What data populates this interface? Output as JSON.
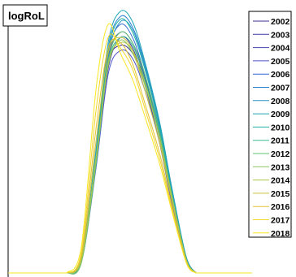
{
  "chart_data": {
    "type": "line",
    "title": "logRoL",
    "xlabel": "",
    "ylabel": "",
    "grid": false,
    "legend_position": "right",
    "xlim": [
      0,
      10
    ],
    "ylim": [
      0,
      1
    ],
    "series": [
      {
        "name": "2002",
        "color": "#3a2f8f",
        "x": [
          2.4,
          3.0,
          3.6,
          4.1,
          4.6,
          5.1,
          5.6,
          6.2,
          6.7,
          7.3,
          7.7
        ],
        "y": [
          0.0,
          0.05,
          0.45,
          0.8,
          0.87,
          0.84,
          0.74,
          0.52,
          0.3,
          0.06,
          0.0
        ]
      },
      {
        "name": "2003",
        "color": "#3f3ca3",
        "x": [
          2.4,
          3.0,
          3.6,
          4.1,
          4.6,
          5.1,
          5.6,
          6.2,
          6.7,
          7.3,
          7.7
        ],
        "y": [
          0.0,
          0.04,
          0.42,
          0.78,
          0.9,
          0.86,
          0.72,
          0.5,
          0.28,
          0.05,
          0.0
        ]
      },
      {
        "name": "2004",
        "color": "#4346b5",
        "x": [
          2.4,
          3.0,
          3.6,
          4.1,
          4.6,
          5.1,
          5.6,
          6.2,
          6.7,
          7.3,
          7.7
        ],
        "y": [
          0.0,
          0.05,
          0.44,
          0.82,
          0.92,
          0.88,
          0.75,
          0.54,
          0.31,
          0.06,
          0.0
        ]
      },
      {
        "name": "2005",
        "color": "#4a51c8",
        "x": [
          2.4,
          3.0,
          3.6,
          4.1,
          4.6,
          5.1,
          5.6,
          6.2,
          6.7,
          7.3,
          7.7
        ],
        "y": [
          0.0,
          0.04,
          0.4,
          0.76,
          0.85,
          0.82,
          0.7,
          0.5,
          0.27,
          0.05,
          0.0
        ]
      },
      {
        "name": "2006",
        "color": "#2f68d4",
        "x": [
          2.4,
          3.0,
          3.6,
          4.1,
          4.6,
          5.1,
          5.6,
          6.2,
          6.7,
          7.3,
          7.7
        ],
        "y": [
          0.0,
          0.05,
          0.46,
          0.84,
          0.95,
          0.9,
          0.76,
          0.55,
          0.32,
          0.06,
          0.0
        ]
      },
      {
        "name": "2007",
        "color": "#2a80d2",
        "x": [
          2.4,
          3.0,
          3.6,
          4.1,
          4.6,
          5.1,
          5.6,
          6.2,
          6.7,
          7.3,
          7.7
        ],
        "y": [
          0.0,
          0.05,
          0.45,
          0.86,
          0.98,
          0.94,
          0.8,
          0.58,
          0.33,
          0.06,
          0.0
        ]
      },
      {
        "name": "2008",
        "color": "#2993c6",
        "x": [
          2.4,
          3.0,
          3.6,
          4.1,
          4.6,
          5.1,
          5.6,
          6.2,
          6.7,
          7.3,
          7.7
        ],
        "y": [
          0.0,
          0.04,
          0.43,
          0.83,
          0.96,
          0.93,
          0.79,
          0.57,
          0.32,
          0.05,
          0.0
        ]
      },
      {
        "name": "2009",
        "color": "#1fa5b8",
        "x": [
          2.4,
          3.0,
          3.6,
          4.1,
          4.6,
          5.1,
          5.6,
          6.2,
          6.7,
          7.3,
          7.7
        ],
        "y": [
          0.0,
          0.05,
          0.47,
          0.88,
          1.0,
          0.96,
          0.81,
          0.58,
          0.33,
          0.06,
          0.0
        ]
      },
      {
        "name": "2010",
        "color": "#22b3a4",
        "x": [
          2.4,
          3.0,
          3.6,
          4.1,
          4.6,
          5.1,
          5.6,
          6.2,
          6.7,
          7.3,
          7.7
        ],
        "y": [
          0.0,
          0.05,
          0.44,
          0.85,
          0.97,
          0.92,
          0.78,
          0.56,
          0.31,
          0.06,
          0.0
        ]
      },
      {
        "name": "2011",
        "color": "#3bbc8e",
        "x": [
          2.4,
          3.0,
          3.6,
          4.1,
          4.6,
          5.1,
          5.6,
          6.2,
          6.7,
          7.3,
          7.7
        ],
        "y": [
          0.0,
          0.04,
          0.41,
          0.8,
          0.9,
          0.87,
          0.74,
          0.53,
          0.29,
          0.05,
          0.0
        ]
      },
      {
        "name": "2012",
        "color": "#5fc373",
        "x": [
          2.4,
          3.0,
          3.6,
          4.1,
          4.6,
          5.1,
          5.6,
          6.2,
          6.7,
          7.3,
          7.7
        ],
        "y": [
          0.0,
          0.05,
          0.43,
          0.81,
          0.92,
          0.88,
          0.76,
          0.54,
          0.3,
          0.05,
          0.0
        ]
      },
      {
        "name": "2013",
        "color": "#87c65e",
        "x": [
          2.4,
          3.0,
          3.6,
          4.1,
          4.6,
          5.1,
          5.6,
          6.2,
          6.7,
          7.3,
          7.7
        ],
        "y": [
          0.0,
          0.04,
          0.42,
          0.79,
          0.89,
          0.84,
          0.72,
          0.52,
          0.29,
          0.05,
          0.0
        ]
      },
      {
        "name": "2014",
        "color": "#abc64a",
        "x": [
          2.4,
          3.0,
          3.6,
          4.1,
          4.6,
          5.1,
          5.6,
          6.2,
          6.7,
          7.3,
          7.7
        ],
        "y": [
          0.0,
          0.05,
          0.44,
          0.8,
          0.88,
          0.85,
          0.73,
          0.52,
          0.3,
          0.05,
          0.0
        ]
      },
      {
        "name": "2015",
        "color": "#cac03a",
        "x": [
          2.4,
          3.0,
          3.6,
          4.1,
          4.6,
          5.1,
          5.6,
          6.2,
          6.7,
          7.3,
          7.7
        ],
        "y": [
          0.0,
          0.06,
          0.5,
          0.84,
          0.9,
          0.85,
          0.7,
          0.5,
          0.28,
          0.05,
          0.0
        ]
      },
      {
        "name": "2016",
        "color": "#e2c234",
        "x": [
          2.4,
          3.0,
          3.6,
          4.1,
          4.6,
          5.1,
          5.6,
          6.2,
          6.7,
          7.3,
          7.7
        ],
        "y": [
          0.0,
          0.07,
          0.55,
          0.86,
          0.88,
          0.8,
          0.65,
          0.46,
          0.26,
          0.04,
          0.0
        ]
      },
      {
        "name": "2017",
        "color": "#f2d62a",
        "x": [
          2.4,
          3.0,
          3.6,
          4.1,
          4.6,
          5.1,
          5.6,
          6.2,
          6.7,
          7.3,
          7.7
        ],
        "y": [
          0.0,
          0.08,
          0.62,
          0.9,
          0.86,
          0.78,
          0.63,
          0.44,
          0.25,
          0.04,
          0.0
        ]
      },
      {
        "name": "2018",
        "color": "#f9e622",
        "x": [
          2.4,
          3.0,
          3.6,
          4.1,
          4.6,
          5.1,
          5.6,
          6.2,
          6.7,
          7.3,
          7.7
        ],
        "y": [
          0.0,
          0.1,
          0.7,
          0.95,
          0.84,
          0.74,
          0.6,
          0.42,
          0.24,
          0.04,
          0.0
        ]
      }
    ]
  }
}
